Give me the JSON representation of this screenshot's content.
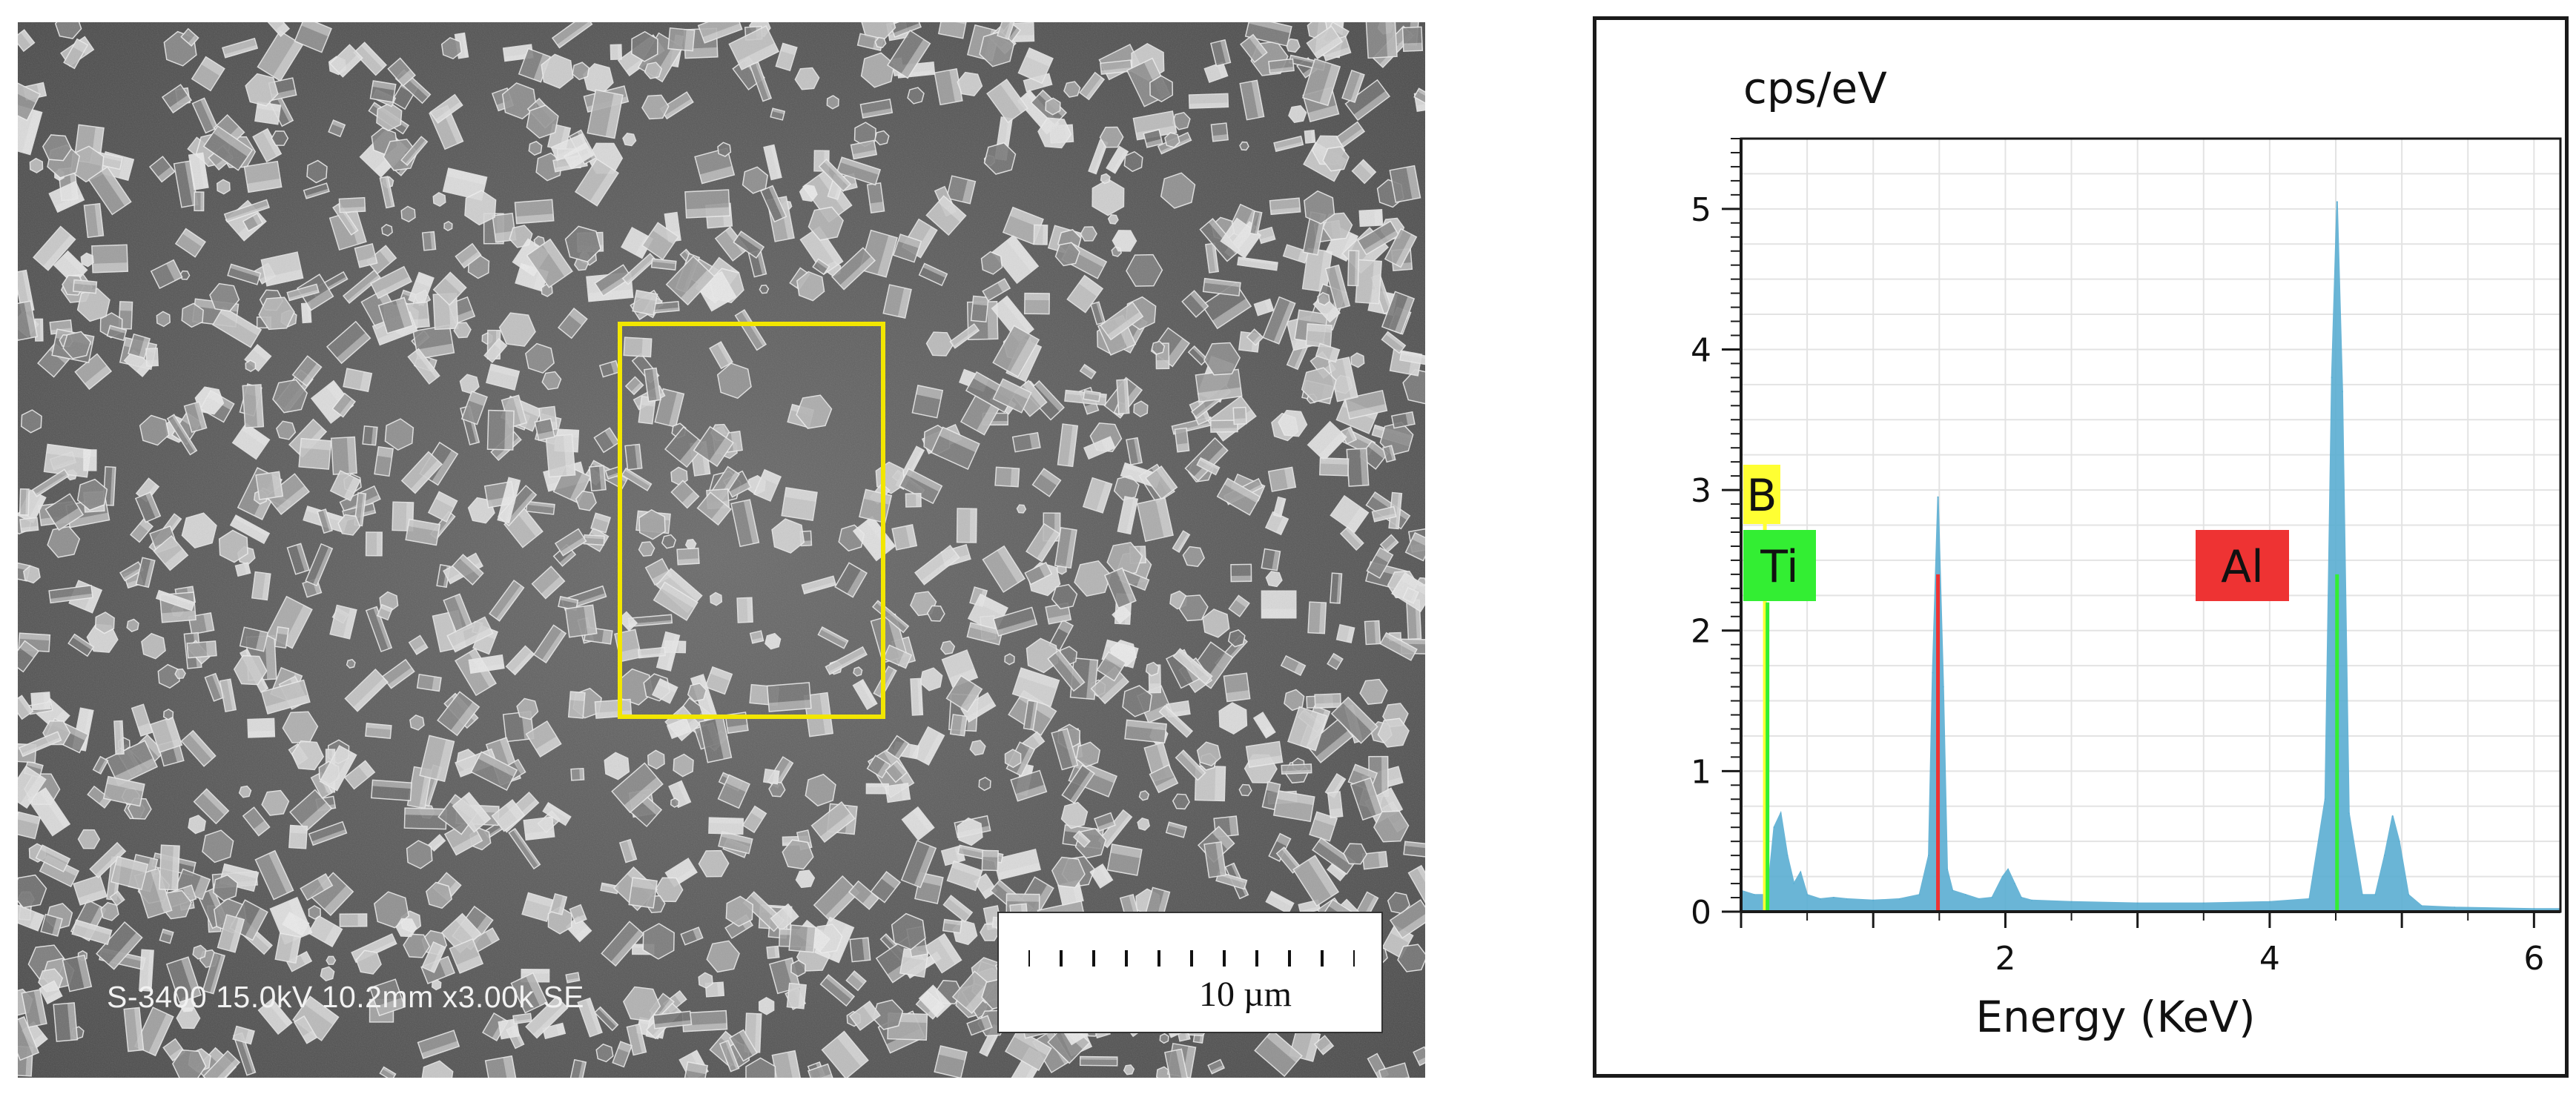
{
  "sem": {
    "info_text": "S-3400 15.0kV 10.2mm x3.00k SE",
    "scale_bar_label": "10 µm",
    "selection_box_color": "#f2e600"
  },
  "chart_data": {
    "type": "area",
    "ylabel": "cps/eV",
    "xlabel": "Energy (KeV)",
    "xlim": [
      0,
      6.2
    ],
    "ylim": [
      0,
      5.5
    ],
    "x_ticks": [
      2,
      4,
      6
    ],
    "y_ticks": [
      0,
      1,
      2,
      3,
      4,
      5
    ],
    "grid": true,
    "series": [
      {
        "color": "#5aaed2",
        "x": [
          0.0,
          0.1,
          0.2,
          0.25,
          0.3,
          0.35,
          0.4,
          0.45,
          0.5,
          0.6,
          0.7,
          0.8,
          1.0,
          1.2,
          1.35,
          1.42,
          1.45,
          1.49,
          1.53,
          1.56,
          1.6,
          1.7,
          1.8,
          1.9,
          1.98,
          2.02,
          2.07,
          2.12,
          2.2,
          2.5,
          3.0,
          3.5,
          4.0,
          4.3,
          4.42,
          4.47,
          4.51,
          4.55,
          4.6,
          4.7,
          4.8,
          4.87,
          4.93,
          4.98,
          5.05,
          5.15,
          5.4,
          6.0,
          6.2
        ],
        "y": [
          0.15,
          0.12,
          0.12,
          0.6,
          0.7,
          0.4,
          0.2,
          0.28,
          0.12,
          0.09,
          0.1,
          0.09,
          0.08,
          0.09,
          0.12,
          0.4,
          1.7,
          2.95,
          1.6,
          0.3,
          0.15,
          0.12,
          0.09,
          0.1,
          0.25,
          0.3,
          0.2,
          0.1,
          0.08,
          0.07,
          0.06,
          0.06,
          0.07,
          0.09,
          0.8,
          3.8,
          5.05,
          3.7,
          0.7,
          0.12,
          0.12,
          0.4,
          0.68,
          0.5,
          0.12,
          0.04,
          0.03,
          0.02,
          0.02
        ]
      }
    ],
    "element_lines": [
      {
        "symbol": "B",
        "energy": 0.18,
        "height": 3.1,
        "color": "#ffff33"
      },
      {
        "symbol": "Ti",
        "energy": 0.2,
        "height": 2.2,
        "color": "#33ee33"
      },
      {
        "symbol": "Al",
        "energy": 1.49,
        "height": 2.4,
        "color": "#ee3333"
      },
      {
        "symbol": "Ti",
        "energy": 4.51,
        "height": 2.4,
        "color": "#33ee33"
      }
    ]
  }
}
